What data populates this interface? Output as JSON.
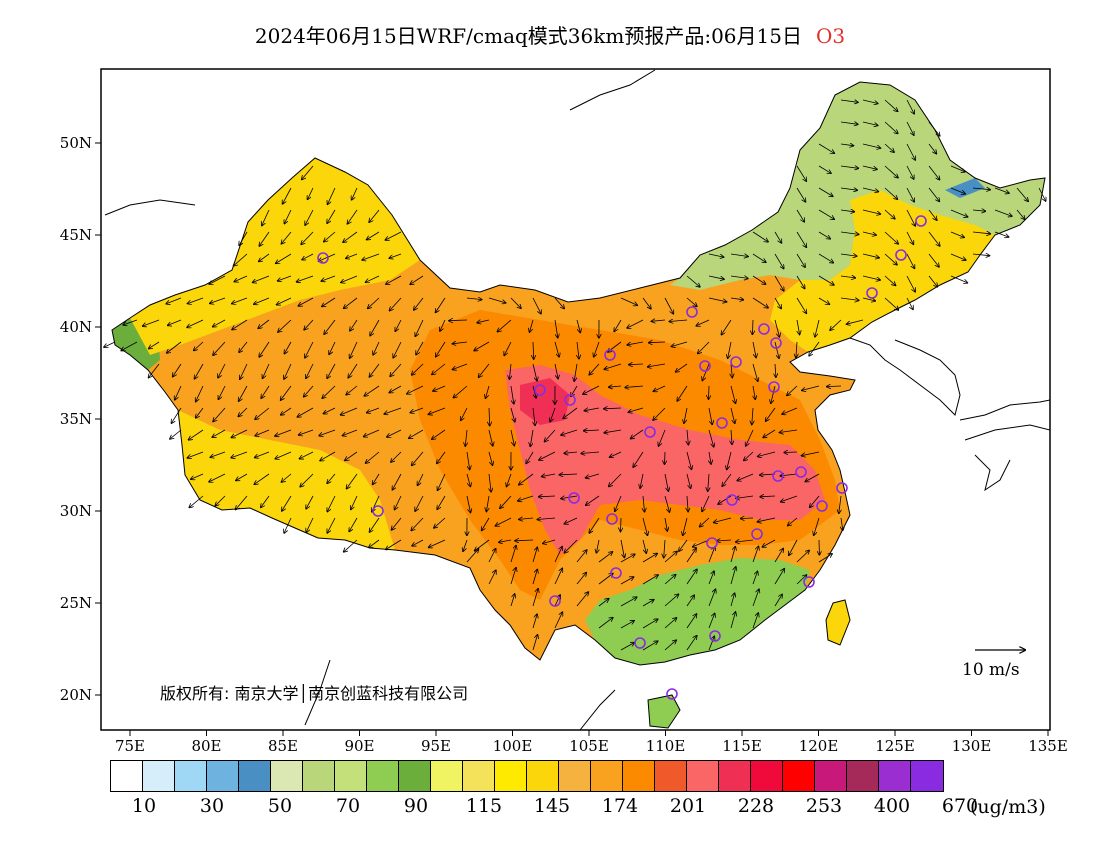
{
  "title": {
    "text": "2024年06月15日WRF/cmaq模式36km预报产品:06月15日",
    "species": "O3"
  },
  "map": {
    "lat_ticks": [
      "50N",
      "45N",
      "40N",
      "35N",
      "30N",
      "25N",
      "20N"
    ],
    "lon_ticks": [
      "75E",
      "80E",
      "85E",
      "90E",
      "95E",
      "100E",
      "105E",
      "110E",
      "115E",
      "120E",
      "125E",
      "130E",
      "135E"
    ],
    "wind_key": "10 m/s",
    "copyright": "版权所有: 南京大学│南京创蓝科技有限公司",
    "station_color": "#8a2be2"
  },
  "colorbar": {
    "colors": [
      "#ffffff",
      "#d6eefa",
      "#9fd8f4",
      "#6eb3e0",
      "#4a8fc4",
      "#dce8b4",
      "#b9d67a",
      "#c3e07a",
      "#8fcc52",
      "#6cae3c",
      "#f1f462",
      "#f3e25a",
      "#fdea00",
      "#fad60a",
      "#f6b23e",
      "#f9a21f",
      "#fc8a00",
      "#f05a2a",
      "#fa6565",
      "#f02f55",
      "#f00a3c",
      "#ff0000",
      "#c8187a",
      "#a52a5a",
      "#9a2ed0",
      "#8a2be2"
    ],
    "labels": [
      "10",
      "30",
      "50",
      "70",
      "90",
      "115",
      "145",
      "174",
      "201",
      "228",
      "253",
      "400",
      "670"
    ],
    "unit": "(ug/m3)"
  }
}
